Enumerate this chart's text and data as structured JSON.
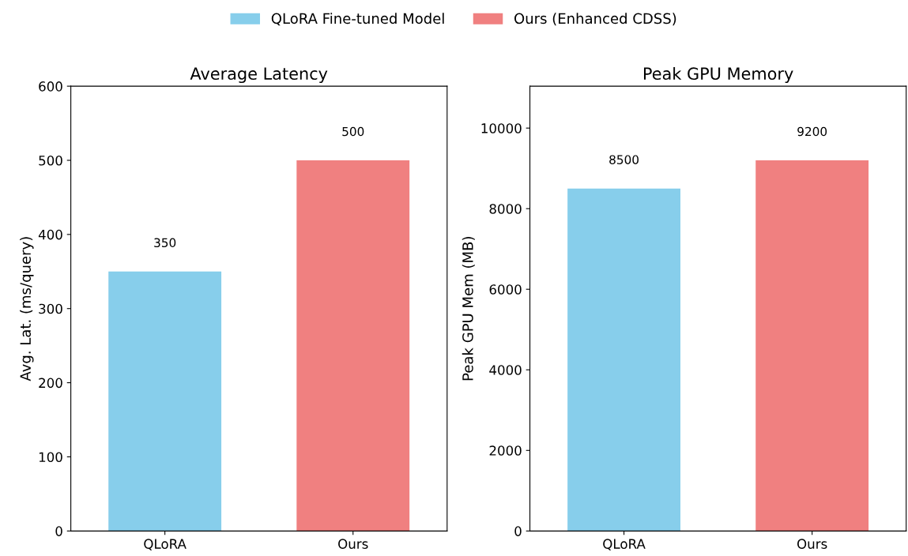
{
  "chart_data": [
    {
      "type": "bar",
      "title": "Average Latency",
      "ylabel": "Avg. Lat. (ms/query)",
      "categories": [
        "QLoRA",
        "Ours"
      ],
      "series": [
        {
          "name": "QLoRA Fine-tuned Model",
          "color": "#87ceeb",
          "values": [
            350,
            null
          ]
        },
        {
          "name": "Ours (Enhanced CDSS)",
          "color": "#f08080",
          "values": [
            null,
            500
          ]
        }
      ],
      "ylim": [
        0,
        600
      ],
      "yticks": [
        0,
        100,
        200,
        300,
        400,
        500,
        600
      ],
      "data_labels": true,
      "legend": "top",
      "grid": false
    },
    {
      "type": "bar",
      "title": "Peak GPU Memory",
      "ylabel": "Peak GPU Mem (MB)",
      "categories": [
        "QLoRA",
        "Ours"
      ],
      "values": [
        8500,
        9200
      ],
      "colors": [
        "#87ceeb",
        "#f08080"
      ],
      "ylim": [
        0,
        11040
      ],
      "yticks": [
        0,
        2000,
        4000,
        6000,
        8000,
        10000
      ],
      "data_labels": true,
      "grid": false
    }
  ]
}
